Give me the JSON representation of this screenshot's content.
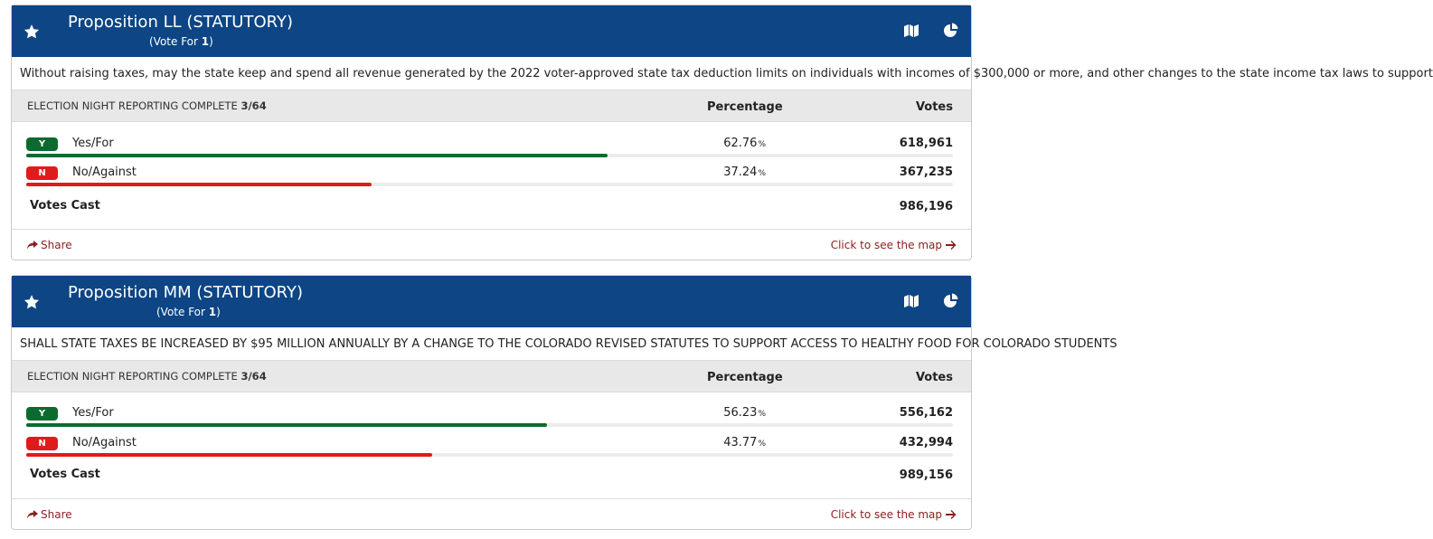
{
  "races": [
    {
      "title": "Proposition LL (STATUTORY)",
      "vote_for_prefix": "(Vote For ",
      "vote_for_count": "1",
      "vote_for_suffix": ")",
      "description": "Without raising taxes, may the state keep and spend all revenue generated by the 2022 voter-approved state tax deduction limits on individuals with incomes of $300,000 or more, and other changes to the state income tax laws to support",
      "reporting_label": "ELECTION NIGHT REPORTING COMPLETE",
      "reporting_value": "3/64",
      "col_percentage": "Percentage",
      "col_votes": "Votes",
      "choices": [
        {
          "badge": "Y",
          "label": "Yes/For",
          "pct": "62.76",
          "pct_symbol": "%",
          "votes": "618,961",
          "share": 0.6276,
          "color": "#0b6b2e"
        },
        {
          "badge": "N",
          "label": "No/Against",
          "pct": "37.24",
          "pct_symbol": "%",
          "votes": "367,235",
          "share": 0.3724,
          "color": "#e01b1b"
        }
      ],
      "votes_cast_label": "Votes Cast",
      "votes_cast": "986,196",
      "share_label": "Share",
      "map_link": "Click to see the map"
    },
    {
      "title": "Proposition MM (STATUTORY)",
      "vote_for_prefix": "(Vote For ",
      "vote_for_count": "1",
      "vote_for_suffix": ")",
      "description": "SHALL STATE TAXES BE INCREASED BY $95 MILLION ANNUALLY BY A CHANGE TO THE COLORADO REVISED STATUTES TO SUPPORT ACCESS TO HEALTHY FOOD FOR COLORADO STUDENTS",
      "reporting_label": "ELECTION NIGHT REPORTING COMPLETE",
      "reporting_value": "3/64",
      "col_percentage": "Percentage",
      "col_votes": "Votes",
      "choices": [
        {
          "badge": "Y",
          "label": "Yes/For",
          "pct": "56.23",
          "pct_symbol": "%",
          "votes": "556,162",
          "share": 0.5623,
          "color": "#0b6b2e"
        },
        {
          "badge": "N",
          "label": "No/Against",
          "pct": "43.77",
          "pct_symbol": "%",
          "votes": "432,994",
          "share": 0.4377,
          "color": "#e01b1b"
        }
      ],
      "votes_cast_label": "Votes Cast",
      "votes_cast": "989,156",
      "share_label": "Share",
      "map_link": "Click to see the map"
    }
  ],
  "colors": {
    "header_bg": "#0d4585",
    "yes": "#0b6b2e",
    "no": "#e01b1b",
    "link": "#8b1e1e"
  },
  "icons": {
    "favorite": "star-icon",
    "map": "map-icon",
    "chart": "pie-chart-icon",
    "share": "share-icon",
    "link_arrow": "arrow-right-icon"
  }
}
